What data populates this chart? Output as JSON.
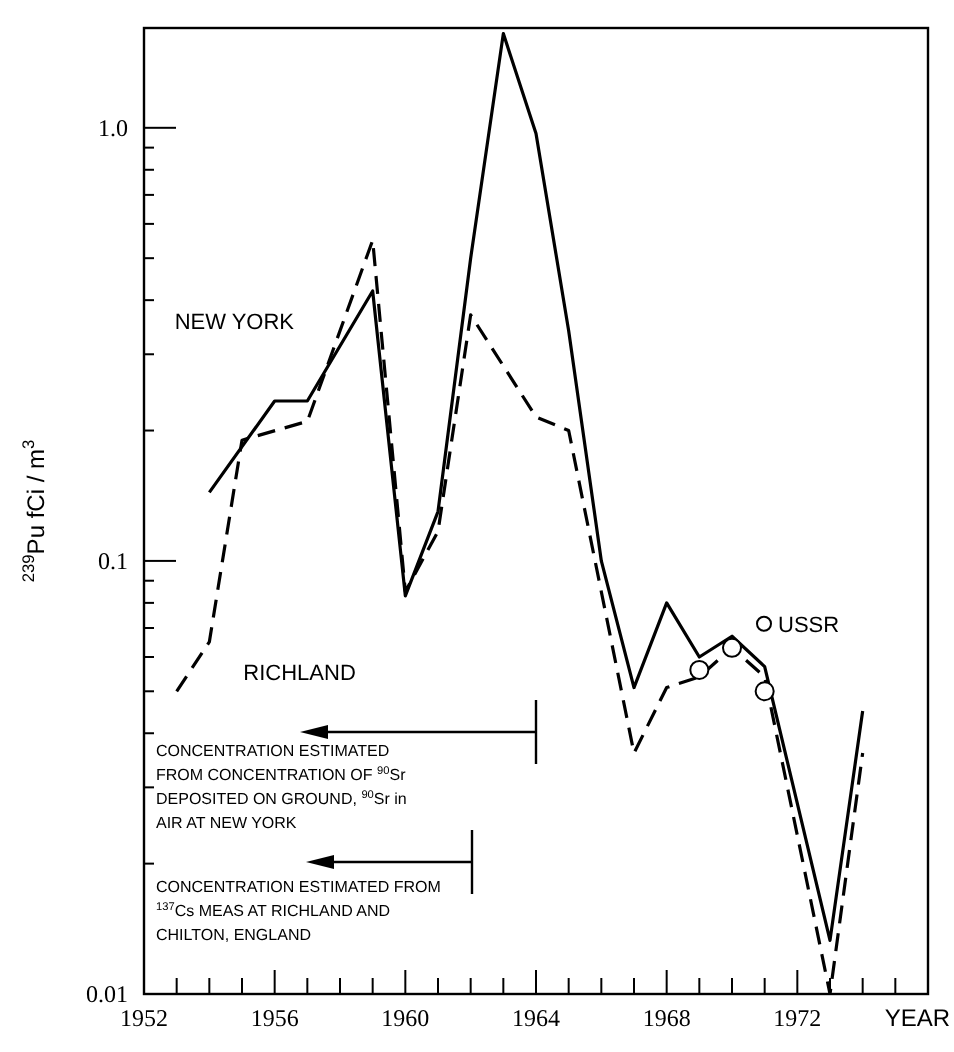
{
  "chart_data": {
    "type": "line",
    "ylabel": "$^{239}$Pu   fCi / m$^{3}$",
    "xlabel": "YEAR",
    "log": "y",
    "xlim": [
      1952,
      1976
    ],
    "ylim": [
      0.01,
      1.7
    ],
    "xticks": [
      1952,
      {
        "value": 1953,
        "label": null
      },
      {
        "value": 1954,
        "label": null
      },
      {
        "value": 1955,
        "label": null
      },
      1956,
      {
        "value": 1957,
        "label": null
      },
      {
        "value": 1958,
        "label": null
      },
      {
        "value": 1959,
        "label": null
      },
      1960,
      {
        "value": 1961,
        "label": null
      },
      {
        "value": 1962,
        "label": null
      },
      {
        "value": 1963,
        "label": null
      },
      1964,
      {
        "value": 1965,
        "label": null
      },
      {
        "value": 1966,
        "label": null
      },
      {
        "value": 1967,
        "label": null
      },
      1968,
      {
        "value": 1969,
        "label": null
      },
      {
        "value": 1970,
        "label": null
      },
      {
        "value": 1971,
        "label": null
      },
      1972,
      {
        "value": 1973,
        "label": null
      },
      {
        "value": 1974,
        "label": null
      },
      {
        "value": 1975,
        "label": null
      }
    ],
    "yticks": [
      0.01,
      {
        "value": 0.02,
        "label": null
      },
      {
        "value": 0.03,
        "label": null
      },
      {
        "value": 0.04,
        "label": null
      },
      {
        "value": 0.05,
        "label": null
      },
      {
        "value": 0.06,
        "label": null
      },
      {
        "value": 0.07,
        "label": null
      },
      {
        "value": 0.08,
        "label": null
      },
      {
        "value": 0.09,
        "label": null
      },
      0.1,
      {
        "value": 0.2,
        "label": null
      },
      {
        "value": 0.3,
        "label": null
      },
      {
        "value": 0.4,
        "label": null
      },
      {
        "value": 0.5,
        "label": null
      },
      {
        "value": 0.6,
        "label": null
      },
      {
        "value": 0.7,
        "label": null
      },
      {
        "value": 0.8,
        "label": null
      },
      {
        "value": 0.9,
        "label": null
      },
      {
        "value": 1,
        "label": "1.0"
      }
    ],
    "grid": false,
    "legend": "right",
    "series": [
      {
        "name": "NEW YORK",
        "color": "#000000",
        "line_style": "solid",
        "marker": "none",
        "x": [
          1954,
          1956,
          1957,
          1959,
          1960,
          1961,
          1962,
          1963,
          1964,
          1965,
          1966,
          1967,
          1968,
          1969,
          1970,
          1971,
          1973,
          1974
        ],
        "values": [
          0.144,
          0.234,
          0.234,
          0.42,
          0.083,
          0.13,
          0.5,
          1.65,
          0.97,
          0.34,
          0.1,
          0.051,
          0.08,
          0.06,
          0.067,
          0.057,
          0.0133,
          0.045
        ]
      },
      {
        "name": "RICHLAND",
        "color": "#000000",
        "line_style": "dashed",
        "marker": "none",
        "x": [
          1953,
          1954,
          1955,
          1957,
          1959,
          1960,
          1961,
          1962,
          1964,
          1965,
          1967,
          1968,
          1969,
          1970,
          1971,
          1973,
          1974
        ],
        "values": [
          0.05,
          0.065,
          0.19,
          0.21,
          0.55,
          0.085,
          0.117,
          0.37,
          0.215,
          0.2,
          0.036,
          0.051,
          0.054,
          0.063,
          0.054,
          0.01,
          0.036
        ]
      },
      {
        "name": "USSR",
        "type": "scatter",
        "color": "#000000",
        "marker": "circle",
        "x": [
          1969,
          1970,
          1971
        ],
        "values": [
          0.056,
          0.063,
          0.05
        ]
      }
    ],
    "annotations": [
      "CONCENTRATION ESTIMATED\nFROM CONCENTRATION OF $^{90}$Sr\nDEPOSITED ON GROUND, $^{90}$Sr in\nAIR AT NEW YORK",
      "CONCENTRATION ESTIMATED FROM\n$^{137}$Cs MEAS AT RICHLAND AND\nCHILTON, ENGLAND"
    ]
  }
}
